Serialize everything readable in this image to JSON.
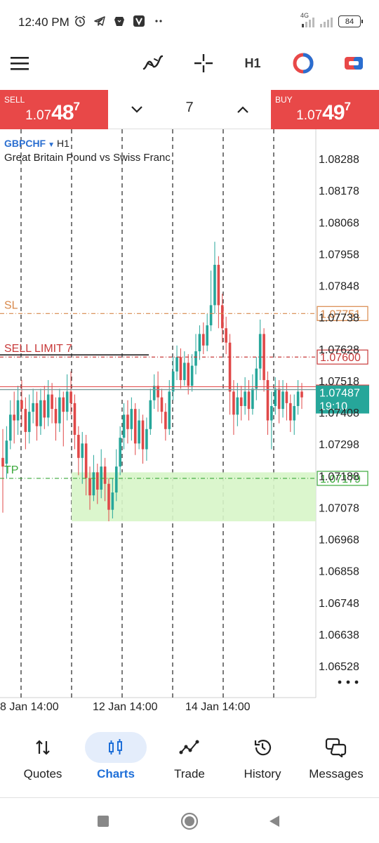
{
  "status": {
    "time": "12:40 PM",
    "network": "4G",
    "battery": "84",
    "icons": [
      "alarm-icon",
      "telegram-icon",
      "brave-icon",
      "v-app-icon",
      "more-dots-icon"
    ]
  },
  "toolbar": {
    "timeframe": "H1",
    "icons": [
      "menu-icon",
      "indicators-icon",
      "crosshair-icon",
      "one-click-trading-icon",
      "trade-panel-icon"
    ]
  },
  "trade": {
    "sell_label": "SELL",
    "sell_prefix": "1.07",
    "sell_big": "48",
    "sell_sup": "7",
    "buy_label": "BUY",
    "buy_prefix": "1.07",
    "buy_big": "49",
    "buy_sup": "7",
    "volume": "7"
  },
  "symbol": {
    "name": "GBPCHF",
    "timeframe": "H1",
    "description": "Great Britain Pound vs Swiss Franc"
  },
  "chart_data": {
    "type": "candlestick",
    "y_ticks": [
      "1.08288",
      "1.08178",
      "1.08068",
      "1.07958",
      "1.07848",
      "1.07738",
      "1.07628",
      "1.07518",
      "1.07408",
      "1.07298",
      "1.07188",
      "1.07078",
      "1.06968",
      "1.06858",
      "1.06748",
      "1.06638",
      "1.06528"
    ],
    "x_ticks": [
      "8 Jan 14:00",
      "12 Jan 14:00",
      "14 Jan 14:00"
    ],
    "ylim": [
      1.06473,
      1.08343
    ],
    "lines": [
      {
        "label": "SL",
        "price": 1.07751,
        "color": "#d8884a",
        "tag": "1.07751"
      },
      {
        "label": "SELL LIMIT 7",
        "price": 1.076,
        "color": "#c83a3a",
        "tag": "1.07600"
      },
      {
        "label": "TP",
        "price": 1.07179,
        "color": "#3aa83a",
        "tag": "1.07179"
      }
    ],
    "bid": {
      "price": 1.07487,
      "tag": "1.07487",
      "countdown": "19:10",
      "color": "#26a69a"
    },
    "ask_price": 1.07497,
    "tp_zone": {
      "from": 1.0703,
      "to": 1.072
    },
    "candles": [
      [
        1.0725,
        1.0722,
        1.0735,
        1.0706
      ],
      [
        1.0723,
        1.0731,
        1.0736,
        1.0718
      ],
      [
        1.0731,
        1.074,
        1.0745,
        1.0728
      ],
      [
        1.074,
        1.0738,
        1.0748,
        1.073
      ],
      [
        1.0738,
        1.0745,
        1.075,
        1.0733
      ],
      [
        1.0745,
        1.0742,
        1.0752,
        1.0736
      ],
      [
        1.0742,
        1.0734,
        1.0746,
        1.0728
      ],
      [
        1.0734,
        1.0741,
        1.0747,
        1.073
      ],
      [
        1.0741,
        1.0744,
        1.0749,
        1.0737
      ],
      [
        1.0744,
        1.0736,
        1.0748,
        1.0731
      ],
      [
        1.0736,
        1.0745,
        1.0749,
        1.0733
      ],
      [
        1.0745,
        1.0739,
        1.075,
        1.0735
      ],
      [
        1.0739,
        1.0747,
        1.0752,
        1.0736
      ],
      [
        1.0747,
        1.0742,
        1.0751,
        1.0737
      ],
      [
        1.0742,
        1.0737,
        1.0746,
        1.0731
      ],
      [
        1.0737,
        1.0746,
        1.0749,
        1.0734
      ],
      [
        1.0746,
        1.0741,
        1.0748,
        1.0729
      ],
      [
        1.0741,
        1.0748,
        1.0754,
        1.0738
      ],
      [
        1.0748,
        1.0744,
        1.0755,
        1.074
      ],
      [
        1.0744,
        1.0733,
        1.0747,
        1.0728
      ],
      [
        1.0733,
        1.0725,
        1.0736,
        1.0719
      ],
      [
        1.0725,
        1.073,
        1.0734,
        1.0716
      ],
      [
        1.073,
        1.0718,
        1.0733,
        1.0712
      ],
      [
        1.0718,
        1.0712,
        1.0722,
        1.0707
      ],
      [
        1.0712,
        1.072,
        1.0726,
        1.071
      ],
      [
        1.072,
        1.0714,
        1.0723,
        1.0709
      ],
      [
        1.0714,
        1.0722,
        1.0728,
        1.0711
      ],
      [
        1.0722,
        1.0716,
        1.0725,
        1.071
      ],
      [
        1.0716,
        1.0707,
        1.0718,
        1.0703
      ],
      [
        1.0707,
        1.0713,
        1.0718,
        1.0704
      ],
      [
        1.0713,
        1.0722,
        1.0728,
        1.071
      ],
      [
        1.0722,
        1.0732,
        1.0736,
        1.0719
      ],
      [
        1.0732,
        1.074,
        1.0744,
        1.0728
      ],
      [
        1.074,
        1.0735,
        1.0745,
        1.073
      ],
      [
        1.0735,
        1.0742,
        1.0746,
        1.0731
      ],
      [
        1.0742,
        1.073,
        1.0744,
        1.0726
      ],
      [
        1.073,
        1.0738,
        1.0742,
        1.0728
      ],
      [
        1.0738,
        1.0728,
        1.074,
        1.0723
      ],
      [
        1.0728,
        1.0735,
        1.0739,
        1.0724
      ],
      [
        1.0735,
        1.0745,
        1.0749,
        1.0733
      ],
      [
        1.0745,
        1.075,
        1.0754,
        1.0742
      ],
      [
        1.075,
        1.0746,
        1.0755,
        1.0741
      ],
      [
        1.0746,
        1.0741,
        1.0749,
        1.0737
      ],
      [
        1.0741,
        1.0735,
        1.0744,
        1.0731
      ],
      [
        1.0735,
        1.0748,
        1.0752,
        1.0733
      ],
      [
        1.0748,
        1.0755,
        1.076,
        1.0745
      ],
      [
        1.0755,
        1.076,
        1.0764,
        1.0752
      ],
      [
        1.076,
        1.0752,
        1.0763,
        1.0749
      ],
      [
        1.0752,
        1.0758,
        1.0762,
        1.075
      ],
      [
        1.0758,
        1.075,
        1.0761,
        1.0747
      ],
      [
        1.075,
        1.0757,
        1.0761,
        1.0748
      ],
      [
        1.0757,
        1.0762,
        1.0768,
        1.0754
      ],
      [
        1.0762,
        1.0768,
        1.0771,
        1.0759
      ],
      [
        1.0768,
        1.0764,
        1.0772,
        1.0761
      ],
      [
        1.0764,
        1.0771,
        1.0775,
        1.0762
      ],
      [
        1.0771,
        1.0778,
        1.079,
        1.0769
      ],
      [
        1.0778,
        1.0792,
        1.08,
        1.0775
      ],
      [
        1.0792,
        1.0778,
        1.0795,
        1.077
      ],
      [
        1.0778,
        1.077,
        1.0782,
        1.0765
      ],
      [
        1.077,
        1.0765,
        1.0774,
        1.0761
      ],
      [
        1.0765,
        1.0748,
        1.0768,
        1.074
      ],
      [
        1.0748,
        1.074,
        1.0752,
        1.0733
      ],
      [
        1.074,
        1.0746,
        1.0751,
        1.0736
      ],
      [
        1.0746,
        1.0743,
        1.075,
        1.0738
      ],
      [
        1.0743,
        1.0748,
        1.0753,
        1.074
      ],
      [
        1.0748,
        1.0742,
        1.0752,
        1.0738
      ],
      [
        1.0742,
        1.0749,
        1.0754,
        1.074
      ],
      [
        1.0749,
        1.0756,
        1.076,
        1.0745
      ],
      [
        1.0756,
        1.0768,
        1.0773,
        1.0752
      ],
      [
        1.0768,
        1.0752,
        1.077,
        1.0748
      ],
      [
        1.0752,
        1.0738,
        1.0755,
        1.0733
      ],
      [
        1.0738,
        1.0743,
        1.0748,
        1.0728
      ],
      [
        1.0743,
        1.0749,
        1.0753,
        1.074
      ],
      [
        1.0749,
        1.0742,
        1.0752,
        1.0737
      ],
      [
        1.0742,
        1.0748,
        1.0752,
        1.0739
      ],
      [
        1.0748,
        1.0744,
        1.0751,
        1.0738
      ],
      [
        1.0744,
        1.0738,
        1.0747,
        1.0734
      ],
      [
        1.0738,
        1.0743,
        1.0747,
        1.0733
      ],
      [
        1.0743,
        1.0748,
        1.0752,
        1.074
      ],
      [
        1.0748,
        1.0746,
        1.0751,
        1.0742
      ]
    ]
  },
  "nav": [
    {
      "label": "Quotes",
      "icon": "quotes-arrows-icon"
    },
    {
      "label": "Charts",
      "icon": "charts-candles-icon"
    },
    {
      "label": "Trade",
      "icon": "trade-graph-icon"
    },
    {
      "label": "History",
      "icon": "history-clock-icon"
    },
    {
      "label": "Messages",
      "icon": "messages-chat-icon"
    }
  ],
  "system_nav": [
    "recents-square-icon",
    "home-circle-icon",
    "back-triangle-icon"
  ]
}
